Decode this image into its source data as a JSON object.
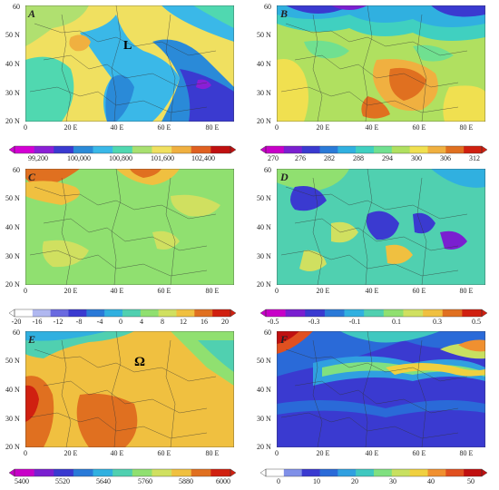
{
  "panels": [
    {
      "letter": "A",
      "lat_ticks": [
        "60",
        "50 N",
        "40 N",
        "30 N",
        "20 N"
      ],
      "lon_ticks": [
        "0",
        "20 E",
        "40 E",
        "60 E",
        "80 E"
      ],
      "symbol": "L",
      "colorbar": {
        "ticks": [
          "99,200",
          "100,000",
          "100,800",
          "101,600",
          "102,400"
        ],
        "colors": [
          "#d400d4",
          "#8a1fd6",
          "#3a3ad0",
          "#2a8ad8",
          "#3ab8e8",
          "#50d8b0",
          "#a8e070",
          "#f0e060",
          "#f0b040",
          "#e06020",
          "#c01010"
        ]
      }
    },
    {
      "letter": "B",
      "lat_ticks": [
        "60",
        "50 N",
        "40 N",
        "30 N",
        "20 N"
      ],
      "lon_ticks": [
        "0",
        "20 E",
        "40 E",
        "60 E",
        "80 E"
      ],
      "symbol": "",
      "colorbar": {
        "ticks": [
          "270",
          "276",
          "282",
          "288",
          "294",
          "300",
          "306",
          "312"
        ],
        "colors": [
          "#c800c8",
          "#7a1fd0",
          "#3a3ad0",
          "#2a7ad8",
          "#30b0e0",
          "#40d0c0",
          "#70e090",
          "#b0e060",
          "#f0e050",
          "#f0b040",
          "#e07020",
          "#d02010"
        ]
      }
    },
    {
      "letter": "C",
      "lat_ticks": [
        "60",
        "50 N",
        "40 N",
        "30 N",
        "20 N"
      ],
      "lon_ticks": [
        "0",
        "20 E",
        "40 E",
        "60 E",
        "80 E"
      ],
      "symbol": "",
      "colorbar": {
        "ticks": [
          "-20",
          "-16",
          "-12",
          "-8",
          "-4",
          "0",
          "4",
          "8",
          "12",
          "16",
          "20"
        ],
        "colors": [
          "#ffffff",
          "#b0b8f0",
          "#6a6ae0",
          "#3a3ad0",
          "#2a7ad8",
          "#30b0e0",
          "#50d0b0",
          "#90e070",
          "#d0e060",
          "#f0c040",
          "#e07020",
          "#d02010"
        ]
      }
    },
    {
      "letter": "D",
      "lat_ticks": [
        "60",
        "50 N",
        "40 N",
        "30 N",
        "20 N"
      ],
      "lon_ticks": [
        "0",
        "20 E",
        "40 E",
        "60 E",
        "80 E"
      ],
      "symbol": "",
      "colorbar": {
        "ticks": [
          "-0.5",
          "-0.3",
          "-0.1",
          "0.1",
          "0.3",
          "0.5"
        ],
        "colors": [
          "#c800c8",
          "#7a1fd0",
          "#3a3ad0",
          "#2a7ad8",
          "#30b0e0",
          "#50d0b0",
          "#90e070",
          "#d0e060",
          "#f0c040",
          "#e07020",
          "#d02010"
        ]
      }
    },
    {
      "letter": "E",
      "lat_ticks": [
        "60",
        "50 N",
        "40 N",
        "30 N",
        "20 N"
      ],
      "lon_ticks": [
        "0",
        "20 E",
        "40 E",
        "60 E",
        "80 E"
      ],
      "symbol": "Ω",
      "colorbar": {
        "ticks": [
          "5400",
          "5520",
          "5640",
          "5760",
          "5880",
          "6000"
        ],
        "colors": [
          "#c800c8",
          "#7a1fd0",
          "#3a3ad0",
          "#2a7ad8",
          "#30b0e0",
          "#50d0b0",
          "#90e070",
          "#d0e060",
          "#f0c040",
          "#e07020",
          "#d02010"
        ]
      }
    },
    {
      "letter": "F",
      "lat_ticks": [
        "60",
        "50 N",
        "40 N",
        "30 N",
        "20 N"
      ],
      "lon_ticks": [
        "0",
        "20 E",
        "40 E",
        "60 E",
        "80 E"
      ],
      "symbol": "",
      "colorbar": {
        "ticks": [
          "0",
          "10",
          "20",
          "30",
          "40",
          "50"
        ],
        "colors": [
          "#ffffff",
          "#8090e8",
          "#3a3ad0",
          "#2a6ad8",
          "#30a0e0",
          "#40c8c0",
          "#80e080",
          "#c8e060",
          "#f0d040",
          "#f09030",
          "#e05020",
          "#c01010"
        ]
      }
    }
  ]
}
